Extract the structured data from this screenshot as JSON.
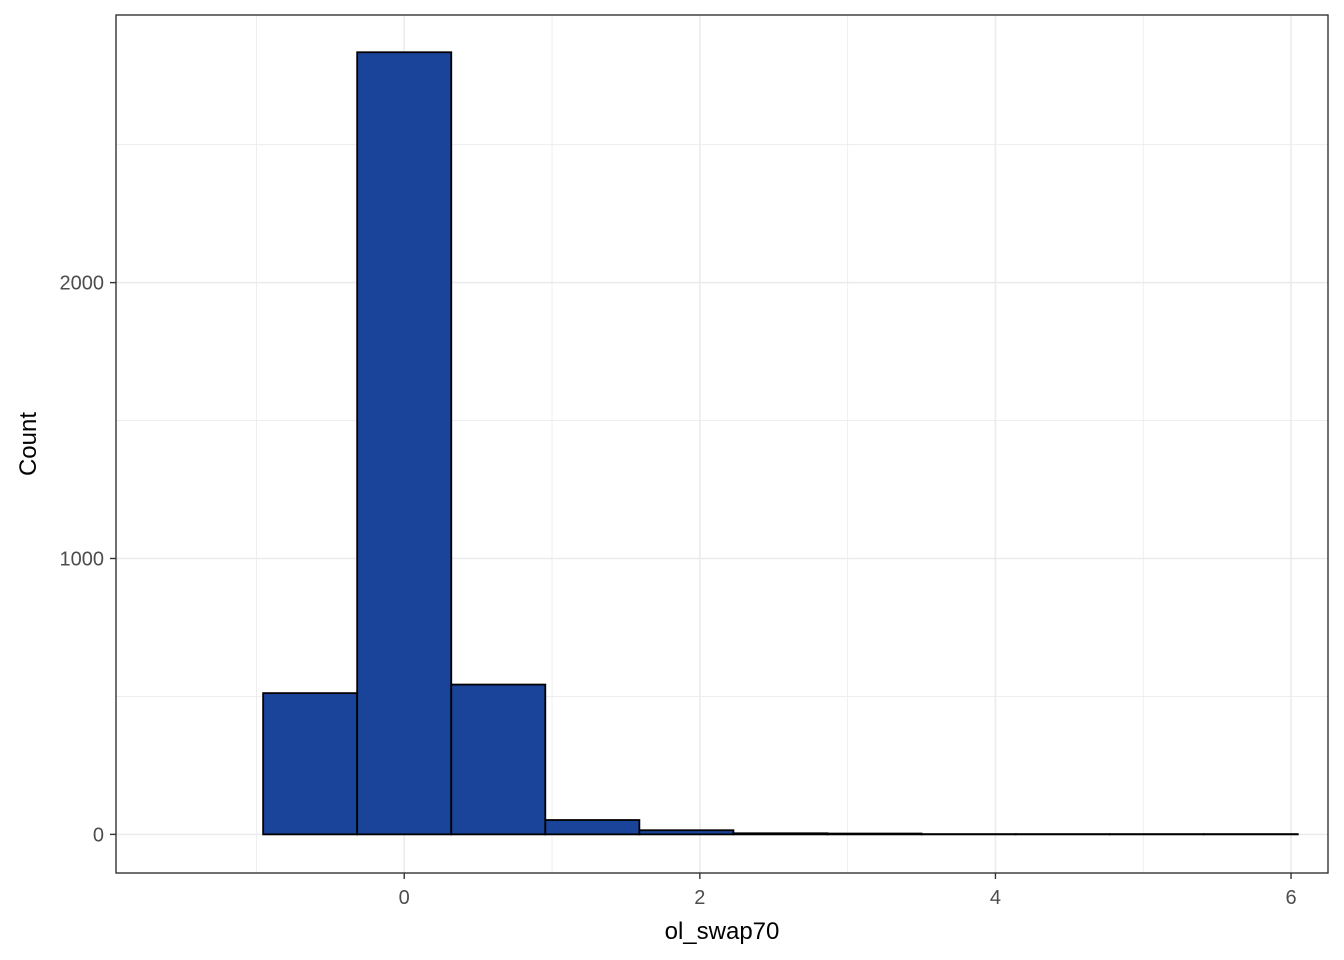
{
  "chart_data": {
    "type": "bar",
    "subtype": "histogram",
    "title": "",
    "xlabel": "ol_swap70",
    "ylabel": "Count",
    "xlim": [
      -1.95,
      6.25
    ],
    "ylim": [
      -140,
      2970
    ],
    "x_ticks": [
      0,
      2,
      4,
      6
    ],
    "y_ticks": [
      0,
      1000,
      2000
    ],
    "x_minor_ticks": [
      -1,
      1,
      3,
      5
    ],
    "y_minor_ticks": [
      500,
      1500,
      2500
    ],
    "grid": true,
    "bin_width": 0.6364,
    "bins": [
      {
        "x0": -1.5909,
        "x1": -0.9545,
        "count": 0
      },
      {
        "x0": -0.9545,
        "x1": -0.3182,
        "count": 512
      },
      {
        "x0": -0.3182,
        "x1": 0.3182,
        "count": 2835
      },
      {
        "x0": 0.3182,
        "x1": 0.9545,
        "count": 543
      },
      {
        "x0": 0.9545,
        "x1": 1.5909,
        "count": 52
      },
      {
        "x0": 1.5909,
        "x1": 2.2273,
        "count": 15
      },
      {
        "x0": 2.2273,
        "x1": 2.8636,
        "count": 4
      },
      {
        "x0": 2.8636,
        "x1": 3.5,
        "count": 3
      },
      {
        "x0": 3.5,
        "x1": 4.1364,
        "count": 1
      },
      {
        "x0": 4.1364,
        "x1": 4.7727,
        "count": 1
      },
      {
        "x0": 4.7727,
        "x1": 5.4091,
        "count": 1
      },
      {
        "x0": 5.4091,
        "x1": 6.0455,
        "count": 1
      }
    ],
    "colors": {
      "fill": "#1a4499",
      "stroke": "#000000",
      "grid": "#ebebeb",
      "panel_border": "#333333",
      "tick_text": "#4d4d4d"
    }
  }
}
